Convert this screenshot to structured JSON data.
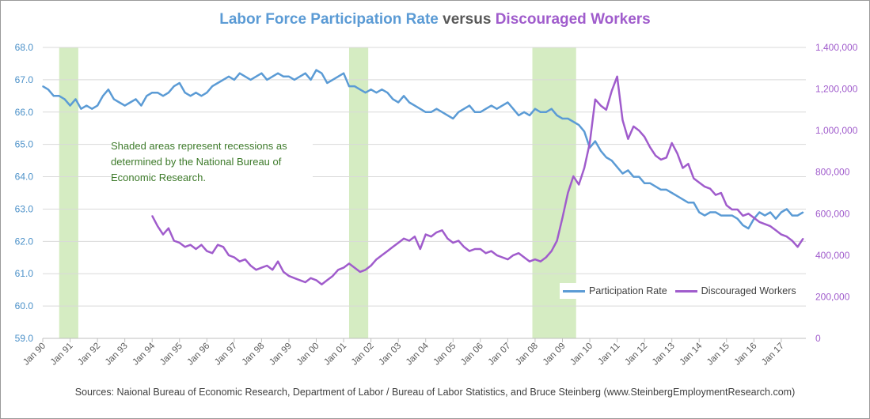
{
  "title": {
    "part1": "Labor Force Participation Rate",
    "part2": "versus",
    "part3": "Discouraged Workers"
  },
  "note": "Shaded areas represent recessions as determined by the National Bureau of Economic Research.",
  "source": "Sources: Naional Bureau of Economic Research, Department of Labor / Bureau of Labor Statistics, and Bruce Steinberg (www.SteinbergEmploymentResearch.com)",
  "legend": {
    "series1": "Participation Rate",
    "series2": "Discouraged Workers"
  },
  "colors": {
    "participation": "#5b9bd5",
    "discouraged": "#a05ccc",
    "recession": "#d5ecc2",
    "grid": "#d9d9d9",
    "note_text": "#3d7a2a"
  },
  "chart_data": {
    "type": "line",
    "y_left": {
      "min": 59.0,
      "max": 68.0,
      "ticks": [
        "59.0",
        "60.0",
        "61.0",
        "62.0",
        "63.0",
        "64.0",
        "65.0",
        "66.0",
        "67.0",
        "68.0"
      ]
    },
    "y_right": {
      "min": 0,
      "max": 1400000,
      "ticks": [
        "0",
        "200,000",
        "400,000",
        "600,000",
        "800,000",
        "1,000,000",
        "1,200,000",
        "1,400,000"
      ]
    },
    "x_range": [
      1990.0,
      2017.9
    ],
    "x_ticks": [
      "Jan 90",
      "Jan 91",
      "Jan 92",
      "Jan 93",
      "Jan 94",
      "Jan 95",
      "Jan 96",
      "Jan 97",
      "Jan 98",
      "Jan 99",
      "Jan 00",
      "Jan 01",
      "Jan 02",
      "Jan 03",
      "Jan 04",
      "Jan 05",
      "Jan 06",
      "Jan 07",
      "Jan 08",
      "Jan 09",
      "Jan 10",
      "Jan 11",
      "Jan 12",
      "Jan 13",
      "Jan 14",
      "Jan 15",
      "Jan 16",
      "Jan 17"
    ],
    "recessions": [
      [
        1990.6,
        1991.3
      ],
      [
        2001.2,
        2001.9
      ],
      [
        2007.9,
        2009.5
      ]
    ],
    "grid": true,
    "legend_position": "bottom-right",
    "series": [
      {
        "name": "Participation Rate",
        "axis": "left",
        "x": [
          1990.0,
          1990.2,
          1990.4,
          1990.6,
          1990.8,
          1991.0,
          1991.2,
          1991.4,
          1991.6,
          1991.8,
          1992.0,
          1992.2,
          1992.4,
          1992.6,
          1992.8,
          1993.0,
          1993.2,
          1993.4,
          1993.6,
          1993.8,
          1994.0,
          1994.2,
          1994.4,
          1994.6,
          1994.8,
          1995.0,
          1995.2,
          1995.4,
          1995.6,
          1995.8,
          1996.0,
          1996.2,
          1996.4,
          1996.6,
          1996.8,
          1997.0,
          1997.2,
          1997.4,
          1997.6,
          1997.8,
          1998.0,
          1998.2,
          1998.4,
          1998.6,
          1998.8,
          1999.0,
          1999.2,
          1999.4,
          1999.6,
          1999.8,
          2000.0,
          2000.2,
          2000.4,
          2000.6,
          2000.8,
          2001.0,
          2001.2,
          2001.4,
          2001.6,
          2001.8,
          2002.0,
          2002.2,
          2002.4,
          2002.6,
          2002.8,
          2003.0,
          2003.2,
          2003.4,
          2003.6,
          2003.8,
          2004.0,
          2004.2,
          2004.4,
          2004.6,
          2004.8,
          2005.0,
          2005.2,
          2005.4,
          2005.6,
          2005.8,
          2006.0,
          2006.2,
          2006.4,
          2006.6,
          2006.8,
          2007.0,
          2007.2,
          2007.4,
          2007.6,
          2007.8,
          2008.0,
          2008.2,
          2008.4,
          2008.6,
          2008.8,
          2009.0,
          2009.2,
          2009.4,
          2009.6,
          2009.8,
          2010.0,
          2010.2,
          2010.4,
          2010.6,
          2010.8,
          2011.0,
          2011.2,
          2011.4,
          2011.6,
          2011.8,
          2012.0,
          2012.2,
          2012.4,
          2012.6,
          2012.8,
          2013.0,
          2013.2,
          2013.4,
          2013.6,
          2013.8,
          2014.0,
          2014.2,
          2014.4,
          2014.6,
          2014.8,
          2015.0,
          2015.2,
          2015.4,
          2015.6,
          2015.8,
          2016.0,
          2016.2,
          2016.4,
          2016.6,
          2016.8,
          2017.0,
          2017.2,
          2017.4,
          2017.6,
          2017.8
        ],
        "values": [
          66.8,
          66.7,
          66.5,
          66.5,
          66.4,
          66.2,
          66.4,
          66.1,
          66.2,
          66.1,
          66.2,
          66.5,
          66.7,
          66.4,
          66.3,
          66.2,
          66.3,
          66.4,
          66.2,
          66.5,
          66.6,
          66.6,
          66.5,
          66.6,
          66.8,
          66.9,
          66.6,
          66.5,
          66.6,
          66.5,
          66.6,
          66.8,
          66.9,
          67.0,
          67.1,
          67.0,
          67.2,
          67.1,
          67.0,
          67.1,
          67.2,
          67.0,
          67.1,
          67.2,
          67.1,
          67.1,
          67.0,
          67.1,
          67.2,
          67.0,
          67.3,
          67.2,
          66.9,
          67.0,
          67.1,
          67.2,
          66.8,
          66.8,
          66.7,
          66.6,
          66.7,
          66.6,
          66.7,
          66.6,
          66.4,
          66.3,
          66.5,
          66.3,
          66.2,
          66.1,
          66.0,
          66.0,
          66.1,
          66.0,
          65.9,
          65.8,
          66.0,
          66.1,
          66.2,
          66.0,
          66.0,
          66.1,
          66.2,
          66.1,
          66.2,
          66.3,
          66.1,
          65.9,
          66.0,
          65.9,
          66.1,
          66.0,
          66.0,
          66.1,
          65.9,
          65.8,
          65.8,
          65.7,
          65.6,
          65.4,
          64.9,
          65.1,
          64.8,
          64.6,
          64.5,
          64.3,
          64.1,
          64.2,
          64.0,
          64.0,
          63.8,
          63.8,
          63.7,
          63.6,
          63.6,
          63.5,
          63.4,
          63.3,
          63.2,
          63.2,
          62.9,
          62.8,
          62.9,
          62.9,
          62.8,
          62.8,
          62.8,
          62.7,
          62.5,
          62.4,
          62.7,
          62.9,
          62.8,
          62.9,
          62.7,
          62.9,
          63.0,
          62.8,
          62.8,
          62.9
        ]
      },
      {
        "name": "Discouraged Workers",
        "axis": "right",
        "x": [
          1994.0,
          1994.2,
          1994.4,
          1994.6,
          1994.8,
          1995.0,
          1995.2,
          1995.4,
          1995.6,
          1995.8,
          1996.0,
          1996.2,
          1996.4,
          1996.6,
          1996.8,
          1997.0,
          1997.2,
          1997.4,
          1997.6,
          1997.8,
          1998.0,
          1998.2,
          1998.4,
          1998.6,
          1998.8,
          1999.0,
          1999.2,
          1999.4,
          1999.6,
          1999.8,
          2000.0,
          2000.2,
          2000.4,
          2000.6,
          2000.8,
          2001.0,
          2001.2,
          2001.4,
          2001.6,
          2001.8,
          2002.0,
          2002.2,
          2002.4,
          2002.6,
          2002.8,
          2003.0,
          2003.2,
          2003.4,
          2003.6,
          2003.8,
          2004.0,
          2004.2,
          2004.4,
          2004.6,
          2004.8,
          2005.0,
          2005.2,
          2005.4,
          2005.6,
          2005.8,
          2006.0,
          2006.2,
          2006.4,
          2006.6,
          2006.8,
          2007.0,
          2007.2,
          2007.4,
          2007.6,
          2007.8,
          2008.0,
          2008.2,
          2008.4,
          2008.6,
          2008.8,
          2009.0,
          2009.2,
          2009.4,
          2009.6,
          2009.8,
          2010.0,
          2010.2,
          2010.4,
          2010.6,
          2010.8,
          2011.0,
          2011.2,
          2011.4,
          2011.6,
          2011.8,
          2012.0,
          2012.2,
          2012.4,
          2012.6,
          2012.8,
          2013.0,
          2013.2,
          2013.4,
          2013.6,
          2013.8,
          2014.0,
          2014.2,
          2014.4,
          2014.6,
          2014.8,
          2015.0,
          2015.2,
          2015.4,
          2015.6,
          2015.8,
          2016.0,
          2016.2,
          2016.4,
          2016.6,
          2016.8,
          2017.0,
          2017.2,
          2017.4,
          2017.6,
          2017.8
        ],
        "values": [
          590000,
          540000,
          500000,
          530000,
          470000,
          460000,
          440000,
          450000,
          430000,
          450000,
          420000,
          410000,
          450000,
          440000,
          400000,
          390000,
          370000,
          380000,
          350000,
          330000,
          340000,
          350000,
          330000,
          370000,
          320000,
          300000,
          290000,
          280000,
          270000,
          290000,
          280000,
          260000,
          280000,
          300000,
          330000,
          340000,
          360000,
          340000,
          320000,
          330000,
          350000,
          380000,
          400000,
          420000,
          440000,
          460000,
          480000,
          470000,
          490000,
          430000,
          500000,
          490000,
          510000,
          520000,
          480000,
          460000,
          470000,
          440000,
          420000,
          430000,
          430000,
          410000,
          420000,
          400000,
          390000,
          380000,
          400000,
          410000,
          390000,
          370000,
          380000,
          370000,
          390000,
          420000,
          470000,
          580000,
          700000,
          780000,
          740000,
          820000,
          940000,
          1150000,
          1120000,
          1100000,
          1190000,
          1260000,
          1050000,
          960000,
          1020000,
          1000000,
          970000,
          920000,
          880000,
          860000,
          870000,
          940000,
          890000,
          820000,
          840000,
          770000,
          750000,
          730000,
          720000,
          690000,
          700000,
          640000,
          620000,
          620000,
          590000,
          600000,
          580000,
          560000,
          550000,
          540000,
          520000,
          500000,
          490000,
          470000,
          440000,
          480000
        ]
      }
    ]
  }
}
